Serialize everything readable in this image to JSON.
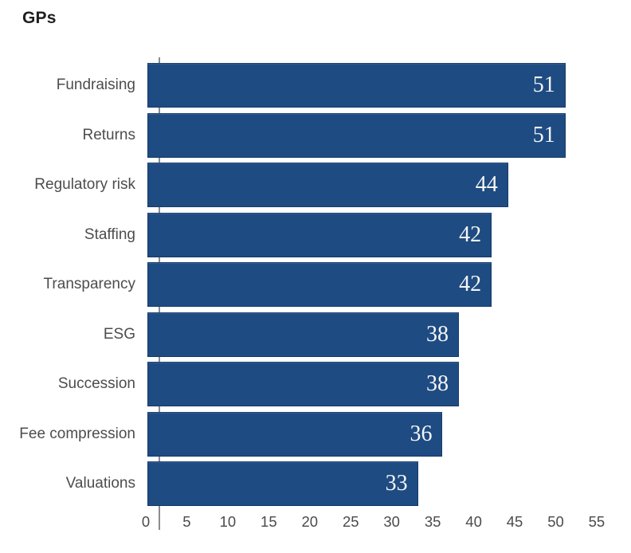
{
  "chart_data": {
    "type": "bar",
    "orientation": "horizontal",
    "title": "GPs",
    "categories": [
      "Fundraising",
      "Returns",
      "Regulatory risk",
      "Staffing",
      "Transparency",
      "ESG",
      "Succession",
      "Fee compression",
      "Valuations"
    ],
    "values": [
      51,
      51,
      44,
      42,
      42,
      38,
      38,
      36,
      33
    ],
    "x_ticks": [
      0,
      5,
      10,
      15,
      20,
      25,
      30,
      35,
      40,
      45,
      50,
      55
    ],
    "xlim": [
      0,
      55
    ],
    "xlabel": "",
    "ylabel": "",
    "grid": false,
    "legend": false,
    "value_labels_inside_bars": true,
    "colors": {
      "bar_fill": "#1e4b82",
      "bar_border": "#16395f",
      "value_label": "#f5f5f5",
      "category_label": "#4d4d4d",
      "tick_label": "#4b4b4b",
      "axis_line": "#8c8c8c",
      "title": "#1f1f1f",
      "background": "#ffffff"
    }
  }
}
